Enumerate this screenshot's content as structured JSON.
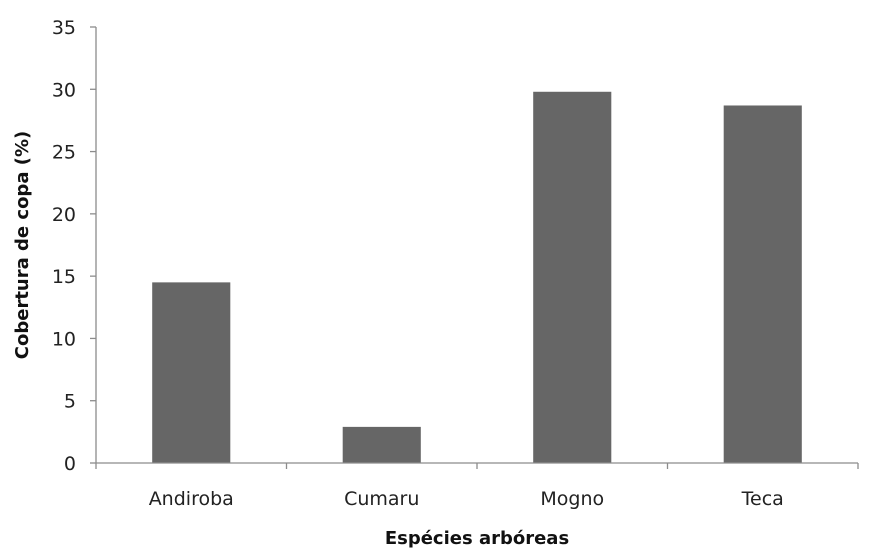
{
  "chart_data": {
    "type": "bar",
    "title": "",
    "xlabel": "Espécies arbóreas",
    "ylabel": "Cobertura de copa (%)",
    "categories": [
      "Andiroba",
      "Cumaru",
      "Mogno",
      "Teca"
    ],
    "values": [
      14.5,
      2.9,
      29.8,
      28.7
    ],
    "ylim": [
      0,
      35
    ],
    "yticks": [
      0,
      5,
      10,
      15,
      20,
      25,
      30,
      35
    ],
    "grid": false,
    "legend": "none",
    "bar_color": "#666666"
  }
}
